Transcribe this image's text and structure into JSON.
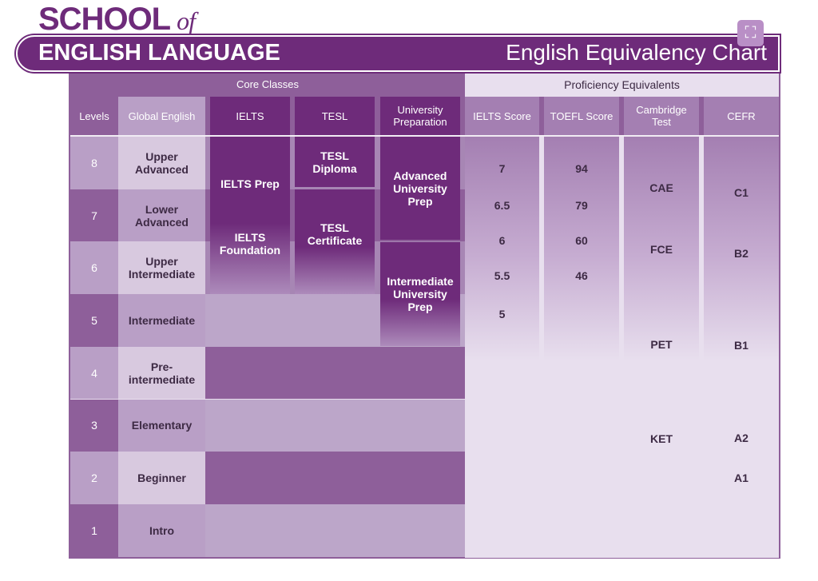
{
  "header": {
    "school": "SCHOOL",
    "of": "of",
    "brand": "ENGLISH LANGUAGE",
    "title": "English Equivalency Chart",
    "expand_icon": "expand-icon"
  },
  "groups": {
    "core": "Core Classes",
    "proficiency": "Proficiency Equivalents"
  },
  "columns": [
    "Levels",
    "Global English",
    "IELTS",
    "TESL",
    "University\nPreparation",
    "IELTS Score",
    "TOEFL Score",
    "Cambridge\nTest",
    "CEFR"
  ],
  "levels": [
    {
      "n": "8",
      "name": "Upper\nAdvanced"
    },
    {
      "n": "7",
      "name": "Lower\nAdvanced"
    },
    {
      "n": "6",
      "name": "Upper\nIntermediate"
    },
    {
      "n": "5",
      "name": "Intermediate"
    },
    {
      "n": "4",
      "name": "Pre-intermediate"
    },
    {
      "n": "3",
      "name": "Elementary"
    },
    {
      "n": "2",
      "name": "Beginner"
    },
    {
      "n": "1",
      "name": "Intro"
    }
  ],
  "courses": {
    "ielts_prep": "IELTS Prep",
    "ielts_foundation": "IELTS\nFoundation",
    "tesl_diploma": "TESL\nDiploma",
    "tesl_certificate": "TESL\nCertificate",
    "adv_uni": "Advanced\nUniversity Prep",
    "int_uni": "Intermediate\nUniversity Prep"
  },
  "ielts_scores": [
    "7",
    "6.5",
    "6",
    "5.5",
    "5"
  ],
  "toefl_scores": [
    "94",
    "79",
    "60",
    "46"
  ],
  "cambridge": [
    "CAE",
    "FCE",
    "PET",
    "KET"
  ],
  "cefr": [
    "C1",
    "B2",
    "B1",
    "A2",
    "A1"
  ],
  "colors": {
    "dark": "#6e2b7a",
    "mid": "#8e5f9a",
    "light": "#bca6c9"
  }
}
